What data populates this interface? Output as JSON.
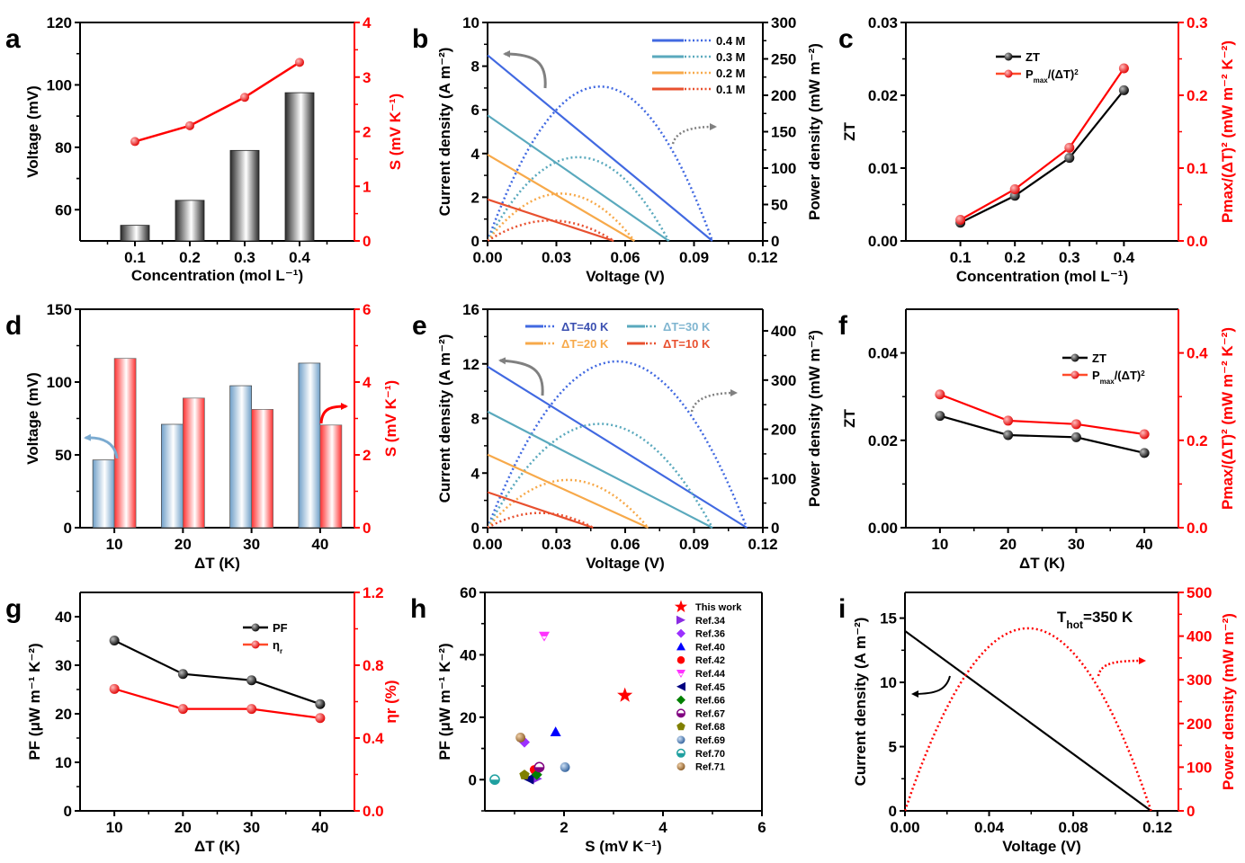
{
  "figure": {
    "panel_labels": [
      "a",
      "b",
      "c",
      "d",
      "e",
      "f",
      "g",
      "h",
      "i"
    ]
  },
  "chart_data": [
    {
      "id": "a",
      "type": "bar",
      "title": "",
      "xlabel": "Concentration (mol L⁻¹)",
      "ylabel": "Voltage (mV)",
      "y2label": "S (mV K⁻¹)",
      "categories": [
        "0.1",
        "0.2",
        "0.3",
        "0.4"
      ],
      "xlim": [
        0,
        0.5
      ],
      "ylim": [
        50,
        120
      ],
      "y2lim": [
        0,
        4
      ],
      "yticks": [
        60,
        80,
        100,
        120
      ],
      "y2ticks": [
        0,
        1,
        2,
        3,
        4
      ],
      "series": [
        {
          "name": "Voltage",
          "axis": "left",
          "kind": "bar",
          "x": [
            0.1,
            0.2,
            0.3,
            0.4
          ],
          "values": [
            55,
            63,
            79,
            97.5
          ],
          "color": "#555555"
        },
        {
          "name": "S",
          "axis": "right",
          "kind": "line",
          "x": [
            0.1,
            0.2,
            0.3,
            0.4
          ],
          "values": [
            1.82,
            2.11,
            2.63,
            3.27
          ],
          "color": "#ff0000"
        }
      ]
    },
    {
      "id": "b",
      "type": "line",
      "xlabel": "Voltage (V)",
      "ylabel": "Current density (A m⁻²)",
      "y2label": "Power density (mW m⁻²)",
      "xlim": [
        0,
        0.12
      ],
      "ylim": [
        0,
        10
      ],
      "y2lim": [
        0,
        300
      ],
      "xticks": [
        "0.00",
        "0.03",
        "0.06",
        "0.09",
        "0.12"
      ],
      "yticks": [
        0,
        2,
        4,
        6,
        8,
        10
      ],
      "y2ticks": [
        0,
        50,
        100,
        150,
        200,
        250,
        300
      ],
      "legend": {
        "position": "top-right"
      },
      "series": [
        {
          "name": "0.4 M",
          "color": "#4169e1",
          "jsc": 8.5,
          "voc": 0.098,
          "pmax": 212
        },
        {
          "name": "0.3 M",
          "color": "#5aa9bd",
          "jsc": 5.75,
          "voc": 0.079,
          "pmax": 115
        },
        {
          "name": "0.2 M",
          "color": "#f7a94a",
          "jsc": 3.95,
          "voc": 0.064,
          "pmax": 65
        },
        {
          "name": "0.1 M",
          "color": "#e8502f",
          "jsc": 1.9,
          "voc": 0.055,
          "pmax": 28
        }
      ]
    },
    {
      "id": "c",
      "type": "line",
      "xlabel": "Concentration (mol L⁻¹)",
      "ylabel": "ZT",
      "y2label": "Pmax/(ΔT)² (mW m⁻² K⁻²)",
      "xlim": [
        0,
        0.5
      ],
      "ylim": [
        0,
        0.03
      ],
      "y2lim": [
        0,
        0.3
      ],
      "xticks": [
        "0.1",
        "0.2",
        "0.3",
        "0.4"
      ],
      "yticks": [
        "0.00",
        "0.01",
        "0.02",
        "0.03"
      ],
      "y2ticks": [
        "0.0",
        "0.1",
        "0.2",
        "0.3"
      ],
      "legend": {
        "position": "top-center",
        "entries": [
          "ZT",
          "Pmax/(ΔT)²"
        ]
      },
      "series": [
        {
          "name": "ZT",
          "axis": "left",
          "x": [
            0.1,
            0.2,
            0.3,
            0.4
          ],
          "values": [
            0.0025,
            0.0062,
            0.0114,
            0.0207
          ],
          "color": "#000000"
        },
        {
          "name": "Pmax/(ΔT)²",
          "axis": "right",
          "x": [
            0.1,
            0.2,
            0.3,
            0.4
          ],
          "values": [
            0.029,
            0.071,
            0.128,
            0.237
          ],
          "color": "#ff0000"
        }
      ]
    },
    {
      "id": "d",
      "type": "bar",
      "xlabel": "ΔT (K)",
      "ylabel": "Voltage (mV)",
      "y2label": "S (mV K⁻¹)",
      "categories": [
        "10",
        "20",
        "30",
        "40"
      ],
      "xlim": [
        0,
        50
      ],
      "ylim": [
        0,
        150
      ],
      "y2lim": [
        0,
        6
      ],
      "yticks": [
        0,
        50,
        100,
        150
      ],
      "y2ticks": [
        0,
        2,
        4,
        6
      ],
      "series": [
        {
          "name": "Voltage",
          "axis": "left",
          "values": [
            46.5,
            71,
            97.5,
            113
          ],
          "color": "#7aaad0"
        },
        {
          "name": "S",
          "axis": "right",
          "values": [
            4.65,
            3.56,
            3.25,
            2.82
          ],
          "color": "#ff3b3b"
        }
      ]
    },
    {
      "id": "e",
      "type": "line",
      "xlabel": "Voltage (V)",
      "ylabel": "Current density (A m⁻²)",
      "y2label": "Power density (mW m⁻²)",
      "xlim": [
        0,
        0.12
      ],
      "ylim": [
        0,
        16
      ],
      "y2lim": [
        0,
        444
      ],
      "xticks": [
        "0.00",
        "0.03",
        "0.06",
        "0.09",
        "0.12"
      ],
      "yticks": [
        0,
        4,
        8,
        12,
        16
      ],
      "y2ticks": [
        0,
        100,
        200,
        300,
        400
      ],
      "legend": {
        "position": "top"
      },
      "series": [
        {
          "name": "ΔT=40 K",
          "color": "#4169e1",
          "jsc": 11.8,
          "voc": 0.113,
          "pmax": 338
        },
        {
          "name": "ΔT=30 K",
          "color": "#5aa9bd",
          "jsc": 8.5,
          "voc": 0.098,
          "pmax": 211
        },
        {
          "name": "ΔT=20 K",
          "color": "#f7a94a",
          "jsc": 5.35,
          "voc": 0.07,
          "pmax": 97
        },
        {
          "name": "ΔT=10 K",
          "color": "#e8502f",
          "jsc": 2.6,
          "voc": 0.046,
          "pmax": 30
        }
      ]
    },
    {
      "id": "f",
      "type": "line",
      "xlabel": "ΔT (K)",
      "ylabel": "ZT",
      "y2label": "Pmax/(ΔT)² (mW m⁻² K⁻²)",
      "xlim": [
        5,
        45
      ],
      "ylim": [
        0,
        0.05
      ],
      "y2lim": [
        0,
        0.5
      ],
      "xticks": [
        "10",
        "20",
        "30",
        "40"
      ],
      "yticks": [
        "0.00",
        "0.02",
        "0.04"
      ],
      "y2ticks": [
        "0.0",
        "0.2",
        "0.4"
      ],
      "legend": {
        "position": "top-right",
        "entries": [
          "ZT",
          "Pmax/(ΔT)²"
        ]
      },
      "series": [
        {
          "name": "ZT",
          "axis": "left",
          "x": [
            10,
            20,
            30,
            40
          ],
          "values": [
            0.0256,
            0.0212,
            0.0207,
            0.0171
          ],
          "color": "#000000"
        },
        {
          "name": "Pmax/(ΔT)²",
          "axis": "right",
          "x": [
            10,
            20,
            30,
            40
          ],
          "values": [
            0.305,
            0.245,
            0.237,
            0.214
          ],
          "color": "#ff0000"
        }
      ]
    },
    {
      "id": "g",
      "type": "line",
      "xlabel": "ΔT (K)",
      "ylabel": "PF (μW m⁻¹ K⁻²)",
      "y2label": "ηr (%)",
      "xlim": [
        5,
        45
      ],
      "ylim": [
        0,
        45
      ],
      "y2lim": [
        0,
        1.2
      ],
      "xticks": [
        "10",
        "20",
        "30",
        "40"
      ],
      "yticks": [
        0,
        10,
        20,
        30,
        40
      ],
      "y2ticks": [
        "0.0",
        "0.4",
        "0.8",
        "1.2"
      ],
      "legend": {
        "position": "top-right",
        "entries": [
          "PF",
          "ηr"
        ]
      },
      "series": [
        {
          "name": "PF",
          "axis": "left",
          "x": [
            10,
            20,
            30,
            40
          ],
          "values": [
            35.1,
            28.2,
            26.9,
            22.0
          ],
          "color": "#000000"
        },
        {
          "name": "ηr",
          "axis": "right",
          "x": [
            10,
            20,
            30,
            40
          ],
          "values": [
            0.67,
            0.56,
            0.56,
            0.51
          ],
          "color": "#ff0000"
        }
      ]
    },
    {
      "id": "h",
      "type": "scatter",
      "xlabel": "S (mV K⁻¹)",
      "ylabel": "PF (μW m⁻¹ K⁻²)",
      "xlim": [
        0.4,
        6
      ],
      "ylim": [
        -10,
        60
      ],
      "xticks": [
        2,
        4,
        6
      ],
      "yticks": [
        0,
        20,
        40,
        60
      ],
      "legend": {
        "position": "top-right"
      },
      "series": [
        {
          "name": "This work",
          "marker": "star",
          "color": "#ff0000",
          "x": 3.23,
          "y": 27
        },
        {
          "name": "Ref.34",
          "marker": "tri-right",
          "color": "#8a2be2",
          "x": 1.45,
          "y": 0.3
        },
        {
          "name": "Ref.36",
          "marker": "diamond",
          "color": "#9b30ff",
          "x": 1.2,
          "y": 12
        },
        {
          "name": "Ref.40",
          "marker": "tri-up",
          "color": "#0000ff",
          "x": 1.83,
          "y": 15.3
        },
        {
          "name": "Ref.42",
          "marker": "circle",
          "color": "#ff0000",
          "x": 1.4,
          "y": 3.2
        },
        {
          "name": "Ref.44",
          "marker": "tri-down-open",
          "color": "#ff33ff",
          "x": 1.6,
          "y": 46
        },
        {
          "name": "Ref.45",
          "marker": "tri-left",
          "color": "#000080",
          "x": 1.28,
          "y": 0.2
        },
        {
          "name": "Ref.66",
          "marker": "diamond",
          "color": "#008000",
          "x": 1.45,
          "y": 1.6
        },
        {
          "name": "Ref.67",
          "marker": "half-circle",
          "color": "#800080",
          "x": 1.5,
          "y": 4
        },
        {
          "name": "Ref.68",
          "marker": "pentagon",
          "color": "#808000",
          "x": 1.2,
          "y": 1.5
        },
        {
          "name": "Ref.69",
          "marker": "sphere",
          "color": "#3a6ea8",
          "x": 2.02,
          "y": 4
        },
        {
          "name": "Ref.70",
          "marker": "half-circle",
          "color": "#20a0a0",
          "x": 0.6,
          "y": 0
        },
        {
          "name": "Ref.71",
          "marker": "sphere",
          "color": "#a0703a",
          "x": 1.12,
          "y": 13.5
        }
      ]
    },
    {
      "id": "i",
      "type": "line",
      "xlabel": "Voltage (V)",
      "ylabel": "Current density (A m⁻²)",
      "y2label": "Power density (mW m⁻²)",
      "xlim": [
        0,
        0.13
      ],
      "ylim": [
        0,
        17
      ],
      "y2lim": [
        0,
        500
      ],
      "xticks": [
        "0.00",
        "0.04",
        "0.08",
        "0.12"
      ],
      "yticks": [
        0,
        5,
        10,
        15
      ],
      "y2ticks": [
        0,
        100,
        200,
        300,
        400,
        500
      ],
      "annotation": "T_hot=350 K",
      "series": [
        {
          "name": "Current density",
          "color": "#000000",
          "jsc": 14,
          "voc": 0.117
        },
        {
          "name": "Power density",
          "color": "#ff0000",
          "pmax": 418,
          "voc": 0.117
        }
      ]
    }
  ]
}
